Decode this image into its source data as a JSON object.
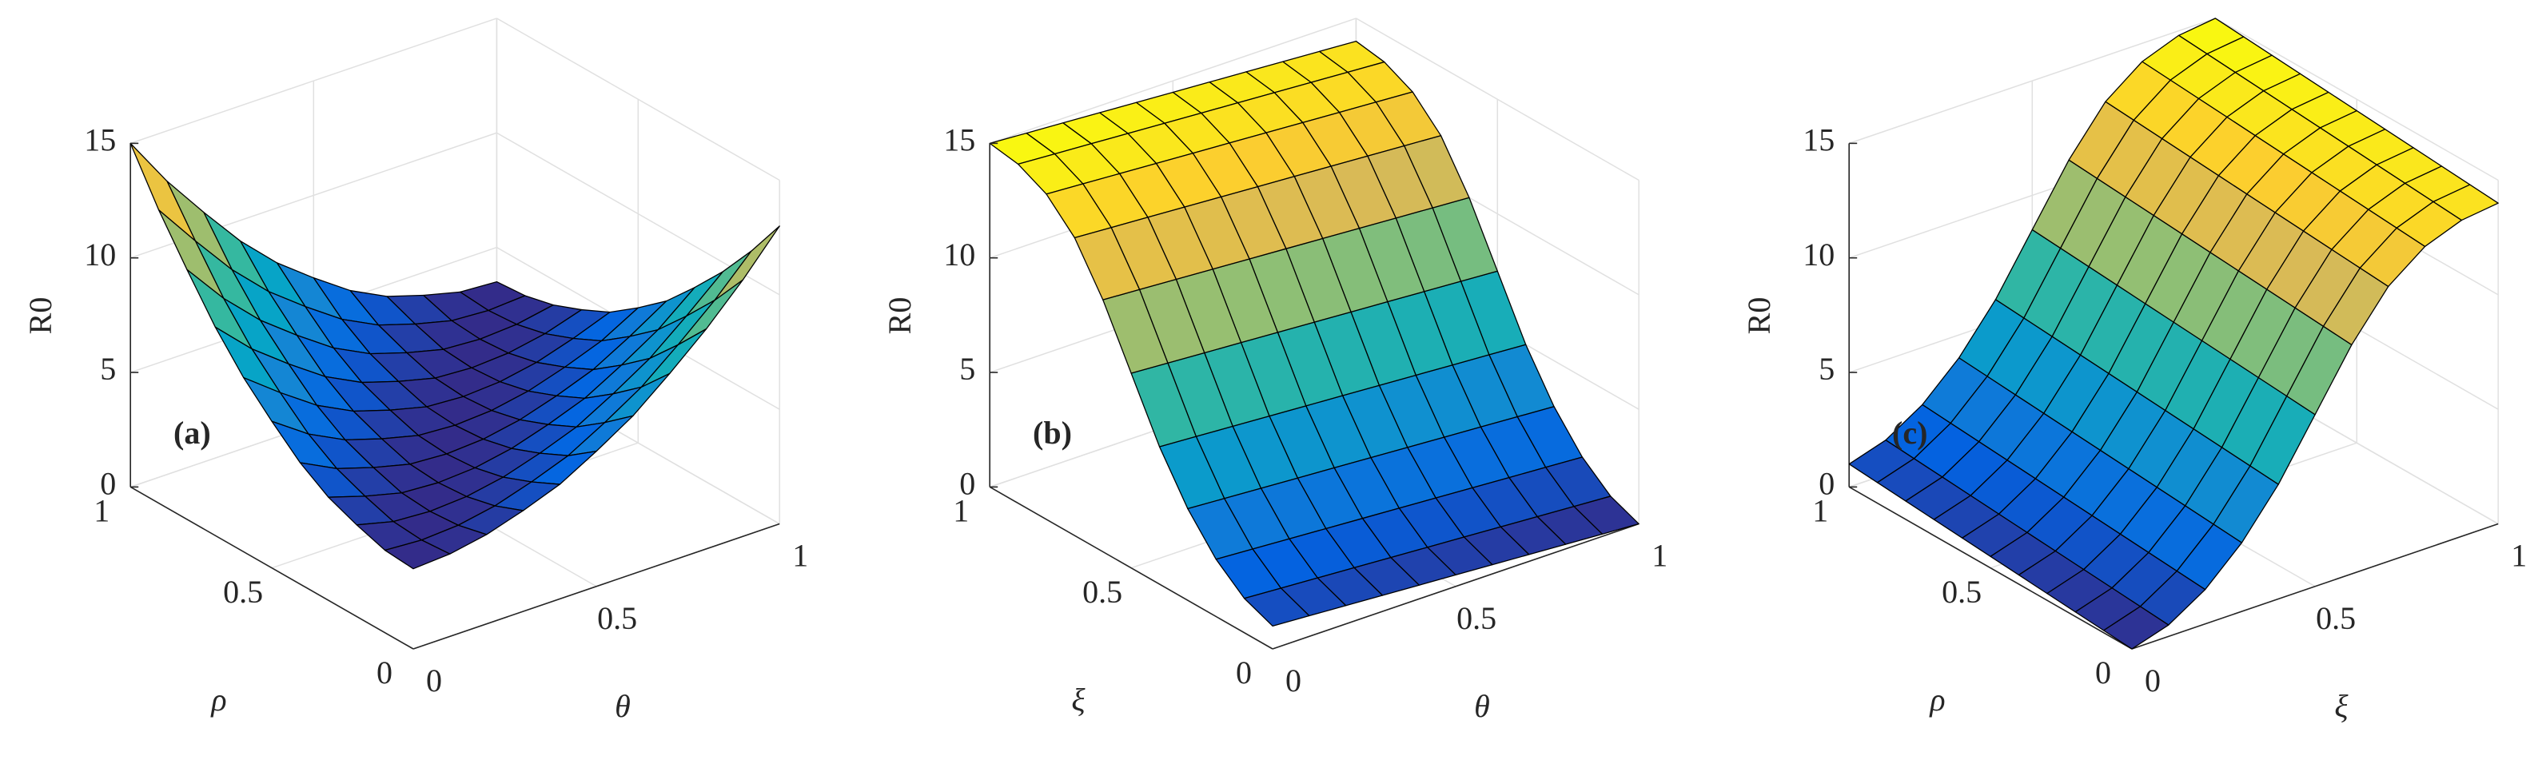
{
  "chart_data": [
    {
      "type": "surface",
      "panel_label": "(a)",
      "zlabel": "R0",
      "xlabel": "θ",
      "ylabel": "ρ",
      "x": [
        0,
        0.1,
        0.2,
        0.3,
        0.4,
        0.5,
        0.6,
        0.7,
        0.8,
        0.9,
        1
      ],
      "y": [
        0,
        0.1,
        0.2,
        0.3,
        0.4,
        0.5,
        0.6,
        0.7,
        0.8,
        0.9,
        1
      ],
      "z": [
        [
          3.5,
          3.6,
          3.9,
          4.4,
          5.0,
          5.9,
          6.9,
          8.2,
          9.6,
          11.2,
          13.0
        ],
        [
          3.6,
          3.5,
          3.6,
          3.9,
          4.4,
          5.0,
          5.9,
          6.9,
          8.2,
          9.6,
          11.2
        ],
        [
          4.0,
          3.6,
          3.5,
          3.6,
          3.9,
          4.4,
          5.0,
          5.9,
          6.9,
          8.2,
          9.6
        ],
        [
          4.5,
          4.0,
          3.6,
          3.5,
          3.6,
          3.9,
          4.4,
          5.0,
          5.9,
          6.9,
          8.2
        ],
        [
          5.3,
          4.5,
          4.0,
          3.6,
          3.5,
          3.6,
          3.9,
          4.4,
          5.0,
          5.9,
          6.9
        ],
        [
          6.4,
          5.3,
          4.5,
          4.0,
          3.6,
          3.5,
          3.6,
          3.9,
          4.4,
          5.0,
          5.9
        ],
        [
          7.6,
          6.4,
          5.3,
          4.5,
          4.0,
          3.6,
          3.5,
          3.6,
          3.9,
          4.4,
          5.0
        ],
        [
          9.1,
          7.6,
          6.4,
          5.3,
          4.5,
          4.0,
          3.6,
          3.5,
          3.6,
          3.9,
          4.4
        ],
        [
          10.9,
          9.1,
          7.6,
          6.4,
          5.3,
          4.5,
          4.0,
          3.6,
          3.5,
          3.6,
          3.9
        ],
        [
          12.8,
          10.9,
          9.1,
          7.6,
          6.4,
          5.3,
          4.5,
          4.0,
          3.6,
          3.5,
          3.6
        ],
        [
          15.0,
          12.8,
          10.9,
          9.1,
          7.6,
          6.4,
          5.3,
          4.5,
          4.0,
          3.6,
          3.5
        ]
      ],
      "xlim": [
        0,
        1
      ],
      "ylim": [
        0,
        1
      ],
      "zlim": [
        0,
        15
      ],
      "xticks": [
        0,
        0.5,
        1
      ],
      "yticks": [
        0,
        0.5,
        1
      ],
      "zticks": [
        0,
        5,
        10,
        15
      ],
      "grid": true,
      "colormap": [
        "#352a87",
        "#0363e1",
        "#1485d4",
        "#06a7c6",
        "#38b99e",
        "#92bf73",
        "#d9ba56",
        "#fcce2e",
        "#f9fb0e"
      ]
    },
    {
      "type": "surface",
      "panel_label": "(b)",
      "zlabel": "R0",
      "xlabel": "θ",
      "ylabel": "ξ",
      "x": [
        0,
        0.1,
        0.2,
        0.3,
        0.4,
        0.5,
        0.6,
        0.7,
        0.8,
        0.9,
        1
      ],
      "y": [
        0,
        0.1,
        0.2,
        0.3,
        0.4,
        0.5,
        0.6,
        0.7,
        0.8,
        0.9,
        1
      ],
      "z": [
        [
          1.0,
          0.9,
          0.8,
          0.7,
          0.6,
          0.5,
          0.4,
          0.3,
          0.2,
          0.1,
          0.0
        ],
        [
          1.5,
          1.4,
          1.3,
          1.2,
          1.1,
          1.0,
          0.9,
          0.8,
          0.7,
          0.6,
          0.5
        ],
        [
          2.5,
          2.4,
          2.3,
          2.2,
          2.1,
          2.0,
          1.9,
          1.8,
          1.7,
          1.6,
          1.5
        ],
        [
          4.0,
          3.9,
          3.8,
          3.7,
          3.6,
          3.5,
          3.4,
          3.3,
          3.2,
          3.1,
          3.0
        ],
        [
          6.0,
          5.9,
          5.8,
          5.7,
          5.6,
          5.5,
          5.4,
          5.3,
          5.2,
          5.1,
          5.0
        ],
        [
          8.5,
          8.4,
          8.3,
          8.2,
          8.1,
          8.0,
          7.9,
          7.8,
          7.7,
          7.6,
          7.5
        ],
        [
          11.0,
          10.9,
          10.8,
          10.7,
          10.6,
          10.5,
          10.4,
          10.3,
          10.2,
          10.1,
          10.0
        ],
        [
          13.0,
          12.9,
          12.8,
          12.7,
          12.6,
          12.5,
          12.4,
          12.3,
          12.2,
          12.1,
          12.0
        ],
        [
          14.2,
          14.1,
          14.0,
          13.9,
          13.8,
          13.7,
          13.6,
          13.5,
          13.4,
          13.3,
          13.2
        ],
        [
          14.8,
          14.7,
          14.6,
          14.5,
          14.4,
          14.3,
          14.2,
          14.1,
          14.0,
          13.9,
          13.8
        ],
        [
          15.0,
          14.9,
          14.8,
          14.7,
          14.6,
          14.5,
          14.4,
          14.3,
          14.2,
          14.1,
          14.0
        ]
      ],
      "xlim": [
        0,
        1
      ],
      "ylim": [
        0,
        1
      ],
      "zlim": [
        0,
        15
      ],
      "xticks": [
        0,
        0.5,
        1
      ],
      "yticks": [
        0,
        0.5,
        1
      ],
      "zticks": [
        0,
        5,
        10,
        15
      ],
      "grid": true,
      "colormap": [
        "#352a87",
        "#0363e1",
        "#1485d4",
        "#06a7c6",
        "#38b99e",
        "#92bf73",
        "#d9ba56",
        "#fcce2e",
        "#f9fb0e"
      ]
    },
    {
      "type": "surface",
      "panel_label": "(c)",
      "zlabel": "R0",
      "xlabel": "ξ",
      "ylabel": "ρ",
      "x": [
        0,
        0.1,
        0.2,
        0.3,
        0.4,
        0.5,
        0.6,
        0.7,
        0.8,
        0.9,
        1
      ],
      "y": [
        0,
        0.1,
        0.2,
        0.3,
        0.4,
        0.5,
        0.6,
        0.7,
        0.8,
        0.9,
        1
      ],
      "z": [
        [
          0.0,
          0.5,
          1.5,
          3.0,
          5.0,
          7.5,
          10.0,
          12.0,
          13.2,
          13.8,
          14.0
        ],
        [
          0.1,
          0.6,
          1.6,
          3.1,
          5.1,
          7.6,
          10.1,
          12.1,
          13.3,
          13.9,
          14.1
        ],
        [
          0.2,
          0.7,
          1.7,
          3.2,
          5.2,
          7.7,
          10.2,
          12.2,
          13.4,
          14.0,
          14.2
        ],
        [
          0.3,
          0.8,
          1.8,
          3.3,
          5.3,
          7.8,
          10.3,
          12.3,
          13.5,
          14.1,
          14.3
        ],
        [
          0.4,
          0.9,
          1.9,
          3.4,
          5.4,
          7.9,
          10.4,
          12.4,
          13.6,
          14.2,
          14.4
        ],
        [
          0.5,
          1.0,
          2.0,
          3.5,
          5.5,
          8.0,
          10.5,
          12.5,
          13.7,
          14.3,
          14.5
        ],
        [
          0.6,
          1.1,
          2.1,
          3.6,
          5.6,
          8.1,
          10.6,
          12.6,
          13.8,
          14.4,
          14.6
        ],
        [
          0.7,
          1.2,
          2.2,
          3.7,
          5.7,
          8.2,
          10.7,
          12.7,
          13.9,
          14.5,
          14.7
        ],
        [
          0.8,
          1.3,
          2.3,
          3.8,
          5.8,
          8.3,
          10.8,
          12.8,
          14.0,
          14.6,
          14.8
        ],
        [
          0.9,
          1.4,
          2.4,
          3.9,
          5.9,
          8.4,
          10.9,
          12.9,
          14.1,
          14.7,
          14.9
        ],
        [
          1.0,
          1.5,
          2.5,
          4.0,
          6.0,
          8.5,
          11.0,
          13.0,
          14.2,
          14.8,
          15.0
        ]
      ],
      "xlim": [
        0,
        1
      ],
      "ylim": [
        0,
        1
      ],
      "zlim": [
        0,
        15
      ],
      "xticks": [
        0,
        0.5,
        1
      ],
      "yticks": [
        0,
        0.5,
        1
      ],
      "zticks": [
        0,
        5,
        10,
        15
      ],
      "grid": true,
      "colormap": [
        "#352a87",
        "#0363e1",
        "#1485d4",
        "#06a7c6",
        "#38b99e",
        "#92bf73",
        "#d9ba56",
        "#fcce2e",
        "#f9fb0e"
      ]
    }
  ]
}
